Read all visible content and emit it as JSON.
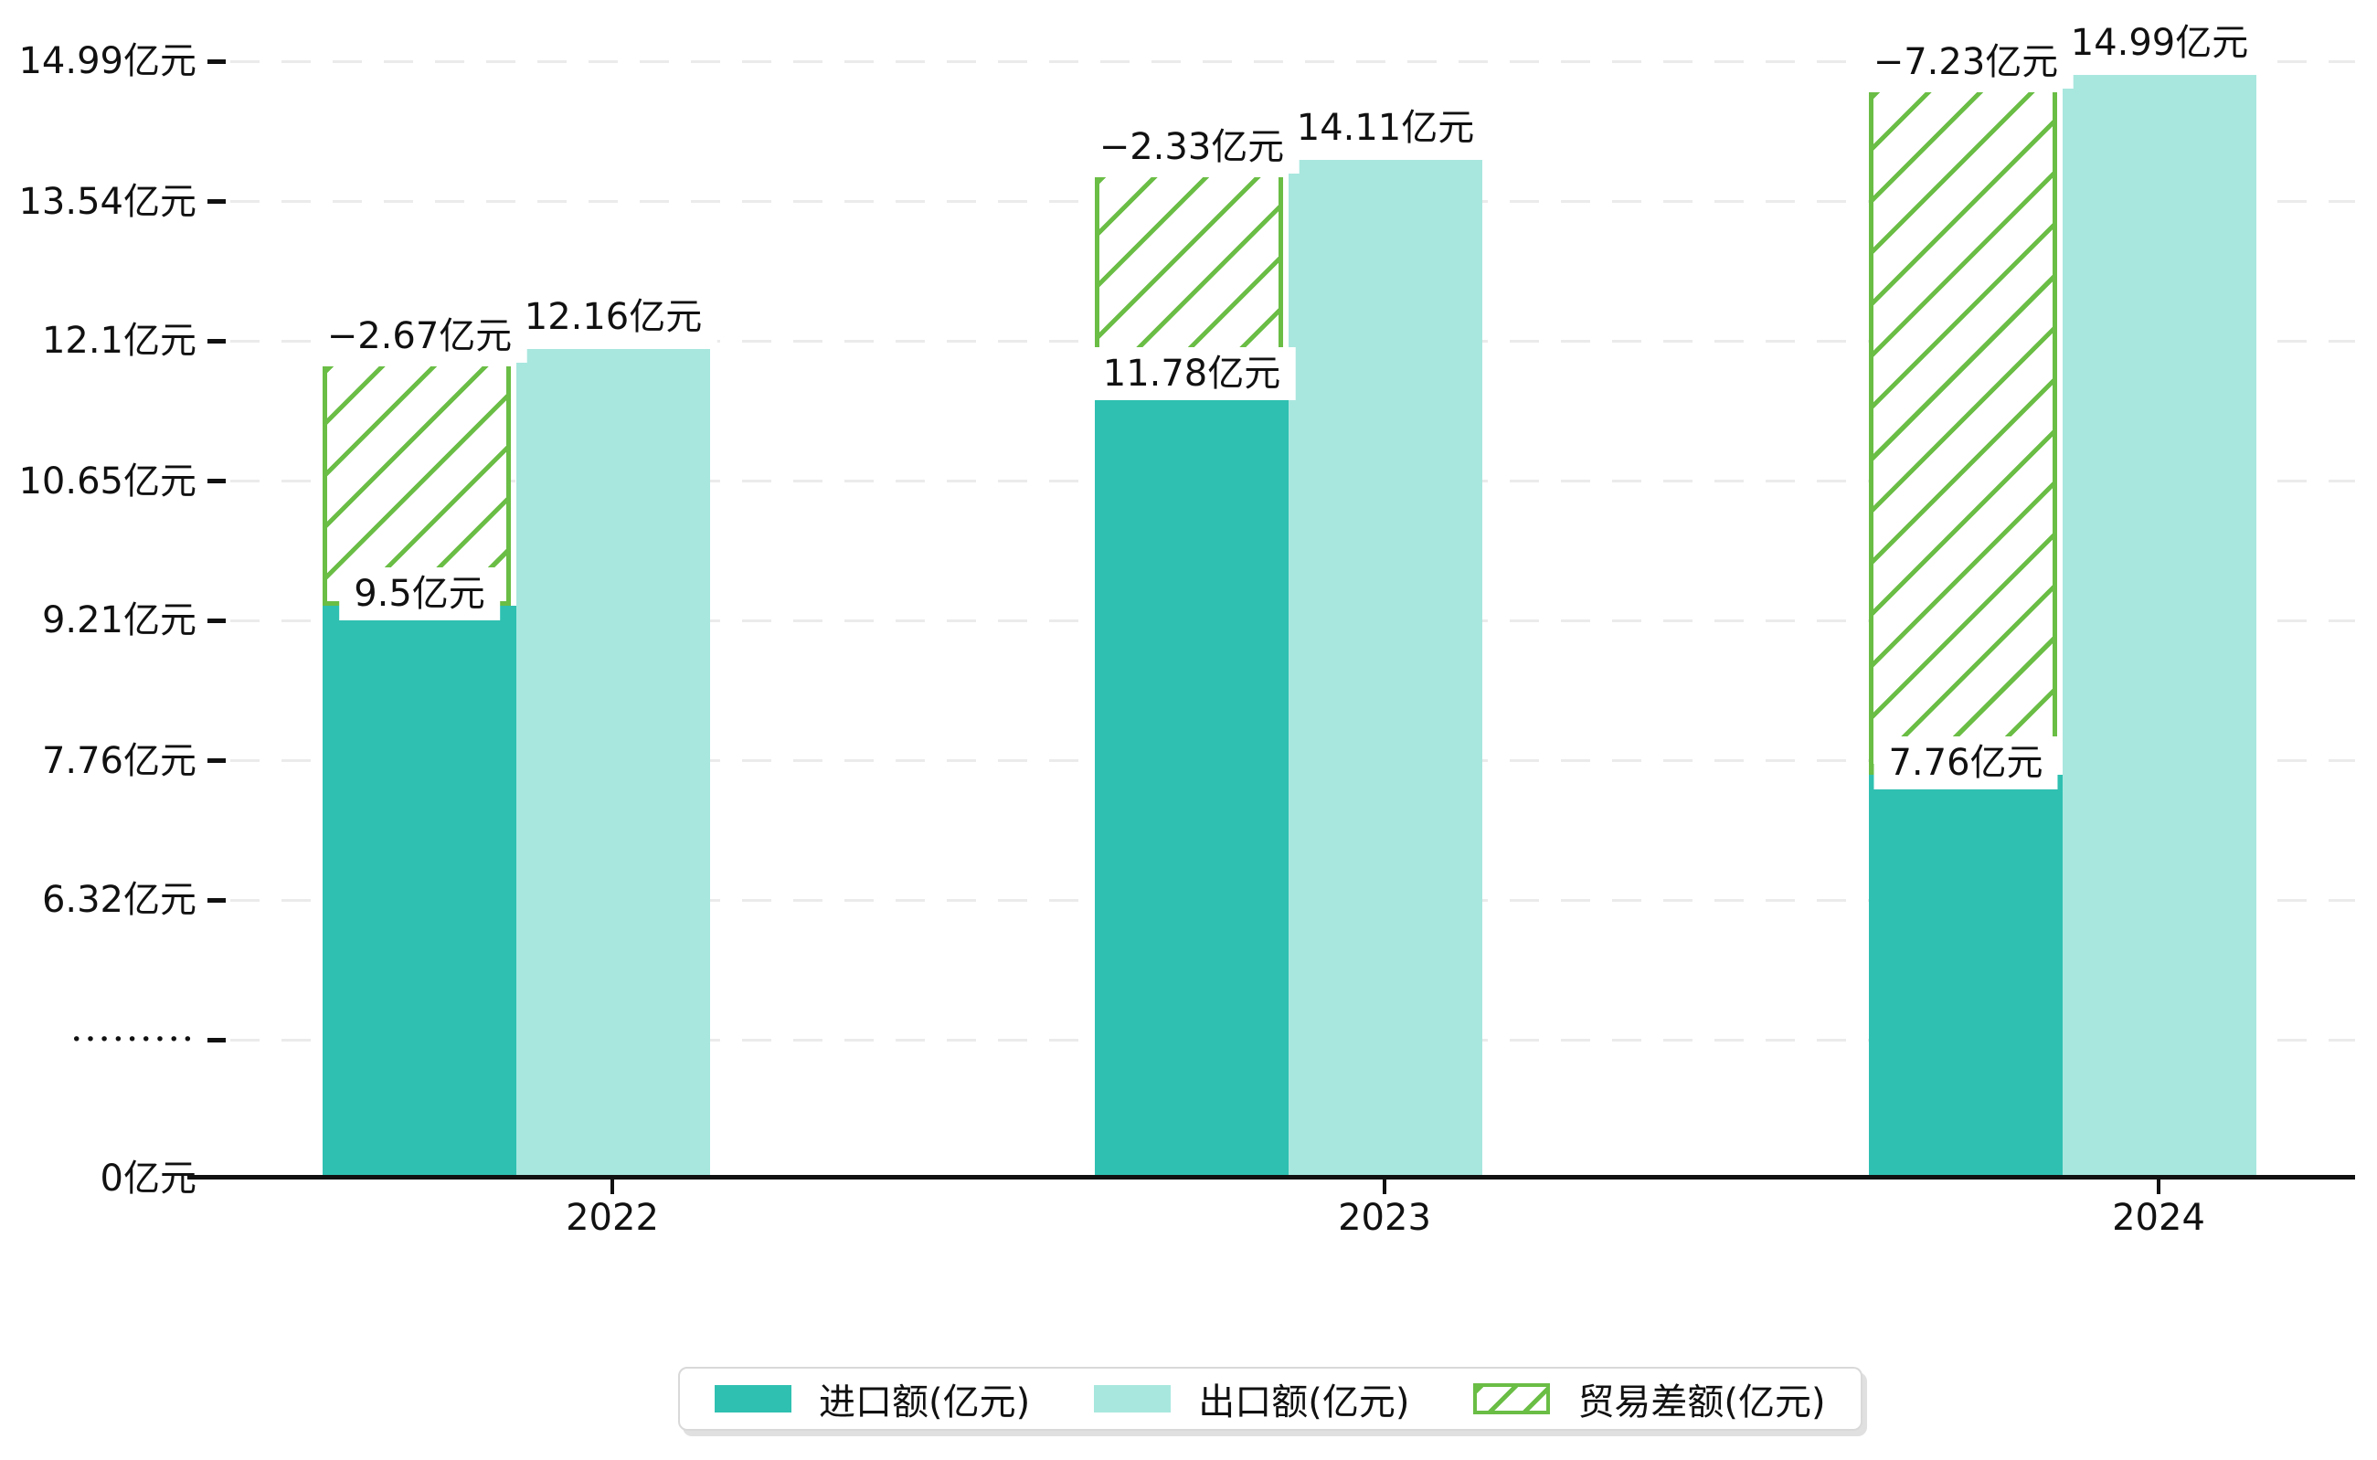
{
  "chart_data": {
    "type": "bar",
    "title": "",
    "categories": [
      "2022",
      "2023",
      "2024"
    ],
    "series": [
      {
        "name": "进口额(亿元)",
        "values": [
          9.5,
          11.78,
          7.76
        ],
        "color": "#2FC0B1",
        "pattern": "solid",
        "data_labels": [
          "9.5亿元",
          "11.78亿元",
          "7.76亿元"
        ]
      },
      {
        "name": "出口额(亿元)",
        "values": [
          12.16,
          14.11,
          14.99
        ],
        "color": "#A8E7DE",
        "pattern": "solid",
        "data_labels": [
          "12.16亿元",
          "14.11亿元",
          "14.99亿元"
        ]
      },
      {
        "name": "贸易差额(亿元)",
        "values": [
          -2.67,
          -2.33,
          -7.23
        ],
        "color": "#6ABD45",
        "pattern": "hatched",
        "data_labels": [
          "−2.67亿元",
          "−2.33亿元",
          "−7.23亿元"
        ]
      }
    ],
    "y_axis": {
      "unit": "亿元",
      "grid": "dashed",
      "axis_break_between": [
        0,
        6.32
      ],
      "ticks": [
        {
          "label": "14.99亿元",
          "value": 14.99
        },
        {
          "label": "13.54亿元",
          "value": 13.54
        },
        {
          "label": "12.1亿元",
          "value": 12.1
        },
        {
          "label": "10.65亿元",
          "value": 10.65
        },
        {
          "label": "9.21亿元",
          "value": 9.21
        },
        {
          "label": "7.76亿元",
          "value": 7.76
        },
        {
          "label": "6.32亿元",
          "value": 6.32
        },
        {
          "label": "•••••••••",
          "value": 4.875,
          "axis_break": true
        },
        {
          "label": "0亿元",
          "value": 0
        }
      ]
    },
    "x_axis": {
      "labels": [
        "2022",
        "2023",
        "2024"
      ]
    },
    "legend": {
      "position": "bottom",
      "entries": [
        "进口额(亿元)",
        "出口额(亿元)",
        "贸易差额(亿元)"
      ]
    },
    "colors": {
      "import": "#2FC0B1",
      "export": "#A8E7DE",
      "deficit": "#6ABD45",
      "text": "#111111",
      "grid": "#ebebeb",
      "axis": "#111111"
    }
  }
}
